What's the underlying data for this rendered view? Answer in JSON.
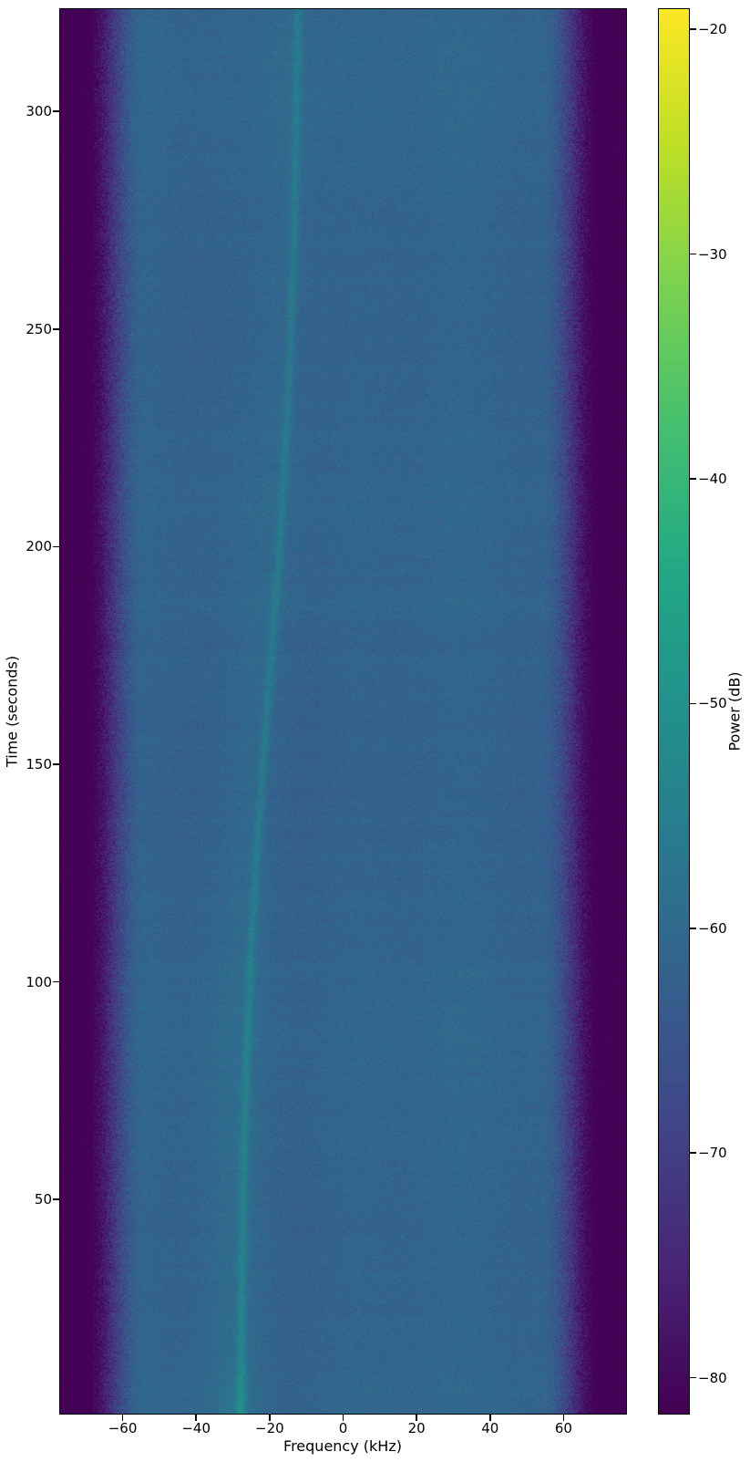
{
  "figure": {
    "xlabel": "Frequency (kHz)",
    "ylabel": "Time (seconds)",
    "colorbar_label": "Power (dB)"
  },
  "chart_data": {
    "type": "heatmap",
    "subtype": "spectrogram-waterfall",
    "title": "",
    "xlabel": "Frequency (kHz)",
    "ylabel": "Time (seconds)",
    "colorbar_label": "Power (dB)",
    "x_range_khz": [
      -77,
      77
    ],
    "y_range_seconds": [
      0.8,
      323.5
    ],
    "x_ticks": [
      -60,
      -40,
      -20,
      0,
      20,
      40,
      60
    ],
    "y_ticks": [
      50,
      100,
      150,
      200,
      250,
      300
    ],
    "colorbar_ticks": [
      -20,
      -30,
      -40,
      -50,
      -60,
      -70,
      -80
    ],
    "value_range_db": [
      -81.6,
      -19.1
    ],
    "grid": false,
    "legend": "none",
    "colormap": "viridis",
    "colormap_stops": [
      [
        0.0,
        "#440154"
      ],
      [
        0.1,
        "#482475"
      ],
      [
        0.2,
        "#414487"
      ],
      [
        0.3,
        "#355f8d"
      ],
      [
        0.4,
        "#2a788e"
      ],
      [
        0.5,
        "#21918c"
      ],
      [
        0.6,
        "#22a884"
      ],
      [
        0.7,
        "#44bf70"
      ],
      [
        0.8,
        "#7ad151"
      ],
      [
        0.9,
        "#bddf26"
      ],
      [
        1.0,
        "#fde725"
      ]
    ],
    "noise_floor": {
      "background_level_db": -61.5,
      "pixel_noise_sigma_db": 1.7,
      "row_noise_db": 0.7,
      "col_noise_db": 0.5
    },
    "edge_rolloff": {
      "comment": "band-edge filter roll-off, symmetric; flat dark floor beyond +/-72 kHz",
      "ramp_start_khz": 54,
      "flat_start_khz": 72,
      "ramp_depth_db": -24,
      "floor_db": -82
    },
    "signal_trace": {
      "comment": "faint drifting carrier, approx -28 kHz at t=0 rising S-curve to approx -12 kHz at t=323 s",
      "model": "f(t) = f0 + amp * tanh((t - t_mid)/tau)",
      "f0_khz": -20,
      "amp_khz": 8.2,
      "t_mid_s": 170,
      "tau_s": 90,
      "line_sigma_khz": 0.9,
      "line_peak_db": 4.5,
      "glow_sigma_khz": 6,
      "glow_peak_db": 1.6,
      "glow_center_offset_khz": -2.5,
      "start_burst_db": 3,
      "start_burst_decay_s": 7
    }
  }
}
